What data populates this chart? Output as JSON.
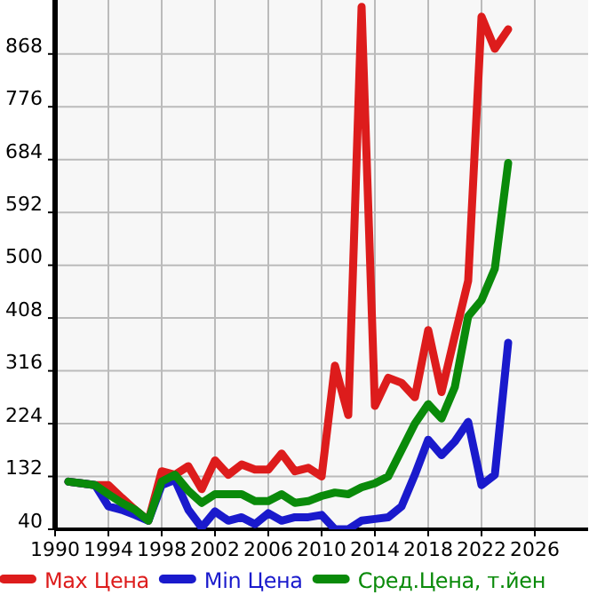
{
  "chart_data": {
    "type": "line",
    "x": [
      1991,
      1992,
      1993,
      1994,
      1995,
      1996,
      1997,
      1998,
      1999,
      2000,
      2001,
      2002,
      2003,
      2004,
      2005,
      2006,
      2007,
      2008,
      2009,
      2010,
      2011,
      2012,
      2013,
      2014,
      2015,
      2016,
      2017,
      2018,
      2019,
      2020,
      2021,
      2022,
      2023,
      2024
    ],
    "series": [
      {
        "name": "Max Цена",
        "color": "#dd1c1c",
        "values": [
          123,
          120,
          117,
          117,
          95,
          74,
          55,
          141,
          135,
          150,
          110,
          160,
          135,
          153,
          144,
          144,
          172,
          141,
          147,
          132,
          325,
          239,
          950,
          255,
          304,
          295,
          270,
          387,
          279,
          377,
          473,
          933,
          877,
          911
        ]
      },
      {
        "name": "Min Цена",
        "color": "#1a1acc",
        "values": [
          123,
          120,
          117,
          80,
          74,
          65,
          55,
          117,
          126,
          74,
          43,
          71,
          55,
          61,
          49,
          68,
          55,
          61,
          61,
          65,
          40,
          40,
          55,
          58,
          61,
          80,
          135,
          196,
          169,
          193,
          227,
          117,
          135,
          365
        ]
      },
      {
        "name": "Сред.Цена, т.йен",
        "color": "#0a8a0a",
        "values": [
          123,
          120,
          117,
          101,
          86,
          74,
          55,
          123,
          135,
          107,
          86,
          101,
          101,
          101,
          89,
          89,
          101,
          86,
          89,
          98,
          104,
          101,
          113,
          120,
          132,
          178,
          224,
          258,
          233,
          288,
          411,
          439,
          494,
          678
        ]
      }
    ],
    "xlim": [
      1990,
      2030
    ],
    "xticks": [
      1990,
      1994,
      1998,
      2002,
      2006,
      2010,
      2014,
      2018,
      2022,
      2026
    ],
    "ylim": [
      40,
      962
    ],
    "yticks": [
      40,
      132,
      224,
      316,
      408,
      500,
      592,
      684,
      776,
      868
    ],
    "grid": true,
    "legend": "bottom",
    "line_style": "solid",
    "marker": "none"
  }
}
